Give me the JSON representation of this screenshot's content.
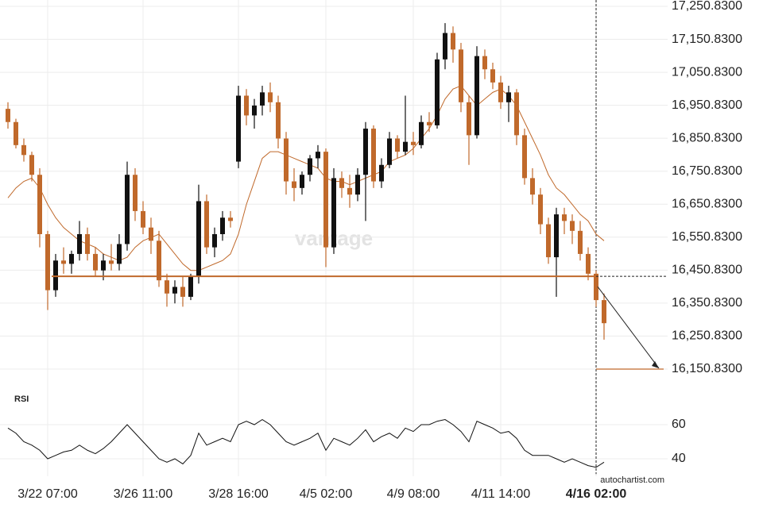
{
  "chart_data": {
    "type": "candlestick",
    "candles": [
      [
        16940,
        16960,
        16880,
        16900
      ],
      [
        16900,
        16910,
        16820,
        16830
      ],
      [
        16830,
        16850,
        16780,
        16800
      ],
      [
        16800,
        16810,
        16720,
        16740
      ],
      [
        16740,
        16760,
        16520,
        16560
      ],
      [
        16560,
        16570,
        16330,
        16390
      ],
      [
        16390,
        16500,
        16370,
        16480
      ],
      [
        16480,
        16520,
        16440,
        16470
      ],
      [
        16470,
        16510,
        16440,
        16500
      ],
      [
        16500,
        16600,
        16480,
        16560
      ],
      [
        16560,
        16580,
        16480,
        16500
      ],
      [
        16500,
        16520,
        16430,
        16450
      ],
      [
        16450,
        16500,
        16420,
        16480
      ],
      [
        16480,
        16530,
        16450,
        16470
      ],
      [
        16470,
        16560,
        16450,
        16530
      ],
      [
        16530,
        16780,
        16510,
        16740
      ],
      [
        16740,
        16760,
        16600,
        16630
      ],
      [
        16630,
        16660,
        16560,
        16580
      ],
      [
        16580,
        16610,
        16500,
        16540
      ],
      [
        16540,
        16570,
        16400,
        16420
      ],
      [
        16420,
        16440,
        16340,
        16380
      ],
      [
        16380,
        16420,
        16350,
        16400
      ],
      [
        16400,
        16430,
        16340,
        16370
      ],
      [
        16370,
        16440,
        16360,
        16430
      ],
      [
        16430,
        16710,
        16410,
        16660
      ],
      [
        16660,
        16680,
        16500,
        16520
      ],
      [
        16520,
        16580,
        16490,
        16560
      ],
      [
        16560,
        16630,
        16540,
        16610
      ],
      [
        16610,
        16630,
        16580,
        16600
      ],
      [
        16780,
        17010,
        16760,
        16980
      ],
      [
        16980,
        17000,
        16890,
        16920
      ],
      [
        16920,
        16970,
        16880,
        16950
      ],
      [
        16950,
        17010,
        16920,
        16990
      ],
      [
        16990,
        17020,
        16930,
        16960
      ],
      [
        16960,
        16980,
        16820,
        16850
      ],
      [
        16850,
        16870,
        16680,
        16720
      ],
      [
        16720,
        16760,
        16660,
        16700
      ],
      [
        16700,
        16750,
        16680,
        16740
      ],
      [
        16740,
        16800,
        16720,
        16790
      ],
      [
        16790,
        16830,
        16760,
        16810
      ],
      [
        16810,
        16820,
        16460,
        16520
      ],
      [
        16520,
        16760,
        16500,
        16730
      ],
      [
        16730,
        16750,
        16670,
        16700
      ],
      [
        16700,
        16740,
        16640,
        16680
      ],
      [
        16680,
        16760,
        16660,
        16740
      ],
      [
        16740,
        16900,
        16600,
        16880
      ],
      [
        16880,
        16890,
        16700,
        16720
      ],
      [
        16720,
        16790,
        16700,
        16770
      ],
      [
        16770,
        16870,
        16760,
        16850
      ],
      [
        16850,
        16860,
        16790,
        16810
      ],
      [
        16810,
        16980,
        16800,
        16840
      ],
      [
        16840,
        16870,
        16800,
        16830
      ],
      [
        16830,
        16920,
        16820,
        16900
      ],
      [
        16900,
        16930,
        16870,
        16890
      ],
      [
        16890,
        17110,
        16880,
        17090
      ],
      [
        17090,
        17200,
        17060,
        17170
      ],
      [
        17170,
        17190,
        17080,
        17120
      ],
      [
        17120,
        17140,
        16930,
        16960
      ],
      [
        16960,
        16980,
        16770,
        16860
      ],
      [
        16860,
        17130,
        16850,
        17100
      ],
      [
        17100,
        17120,
        17030,
        17060
      ],
      [
        17060,
        17080,
        17000,
        17020
      ],
      [
        17020,
        17040,
        16940,
        16960
      ],
      [
        16960,
        17010,
        16900,
        16990
      ],
      [
        16990,
        17000,
        16830,
        16860
      ],
      [
        16860,
        16880,
        16710,
        16730
      ],
      [
        16730,
        16760,
        16650,
        16680
      ],
      [
        16680,
        16700,
        16560,
        16590
      ],
      [
        16590,
        16610,
        16470,
        16490
      ],
      [
        16490,
        16640,
        16370,
        16620
      ],
      [
        16620,
        16640,
        16560,
        16600
      ],
      [
        16600,
        16620,
        16530,
        16570
      ],
      [
        16570,
        16600,
        16480,
        16500
      ],
      [
        16500,
        16520,
        16420,
        16440
      ],
      [
        16440,
        16450,
        16340,
        16360
      ],
      [
        16360,
        16380,
        16240,
        16290
      ]
    ],
    "up_color": "#111111",
    "down_color": "#c0692b",
    "moving_average": {
      "color": "#c0692b",
      "values": [
        16670,
        16700,
        16720,
        16730,
        16700,
        16650,
        16610,
        16580,
        16560,
        16540,
        16530,
        16520,
        16500,
        16490,
        16480,
        16490,
        16520,
        16540,
        16550,
        16560,
        16530,
        16500,
        16470,
        16450,
        16450,
        16460,
        16470,
        16480,
        16500,
        16560,
        16650,
        16720,
        16790,
        16810,
        16810,
        16800,
        16790,
        16780,
        16770,
        16760,
        16730,
        16720,
        16720,
        16710,
        16720,
        16730,
        16740,
        16750,
        16780,
        16790,
        16800,
        16820,
        16850,
        16880,
        16920,
        16970,
        17000,
        17010,
        16980,
        16950,
        16970,
        16990,
        17000,
        16980,
        16950,
        16900,
        16850,
        16800,
        16740,
        16700,
        16680,
        16650,
        16620,
        16600,
        16560,
        16540
      ]
    },
    "support_level": 16432,
    "target_level": 16150.83,
    "level_color": "#c0692b",
    "xlim": [
      -1,
      83
    ],
    "xticks": [
      {
        "value": 5,
        "label": "3/22 07:00"
      },
      {
        "value": 17,
        "label": "3/26 11:00"
      },
      {
        "value": 29,
        "label": "3/28 16:00"
      },
      {
        "value": 40,
        "label": "4/5 02:00"
      },
      {
        "value": 51,
        "label": "4/9 08:00"
      },
      {
        "value": 62,
        "label": "4/11 14:00"
      },
      {
        "value": 74,
        "label": "4/16 02:00"
      }
    ],
    "ylim": [
      16090.6,
      17270.1
    ],
    "yticks": [
      {
        "value": 17250.83,
        "label": "17,250.8300"
      },
      {
        "value": 17150.83,
        "label": "17,150.8300"
      },
      {
        "value": 17050.83,
        "label": "17,050.8300"
      },
      {
        "value": 16950.83,
        "label": "16,950.8300"
      },
      {
        "value": 16850.83,
        "label": "16,850.8300"
      },
      {
        "value": 16750.83,
        "label": "16,750.8300"
      },
      {
        "value": 16650.83,
        "label": "16,650.8300"
      },
      {
        "value": 16550.83,
        "label": "16,550.8300"
      },
      {
        "value": 16450.83,
        "label": "16,450.8300"
      },
      {
        "value": 16350.83,
        "label": "16,350.8300"
      },
      {
        "value": 16250.83,
        "label": "16,250.8300"
      },
      {
        "value": 16150.83,
        "label": "16,150.8300"
      }
    ],
    "rsi": {
      "label": "RSI",
      "color": "#111111",
      "ylim": [
        32,
        72
      ],
      "yticks": [
        60,
        40
      ],
      "values": [
        58,
        55,
        50,
        48,
        45,
        40,
        42,
        44,
        45,
        48,
        45,
        43,
        46,
        50,
        55,
        60,
        55,
        50,
        45,
        40,
        38,
        40,
        37,
        42,
        55,
        48,
        50,
        52,
        50,
        60,
        62,
        60,
        63,
        60,
        55,
        50,
        48,
        50,
        52,
        55,
        45,
        52,
        50,
        48,
        52,
        57,
        50,
        53,
        55,
        52,
        58,
        56,
        60,
        60,
        62,
        63,
        60,
        56,
        50,
        62,
        60,
        58,
        55,
        56,
        52,
        45,
        42,
        42,
        42,
        40,
        38,
        40,
        38,
        36,
        35,
        38
      ]
    },
    "watermark": "vantage",
    "source": "autochartist.com"
  }
}
